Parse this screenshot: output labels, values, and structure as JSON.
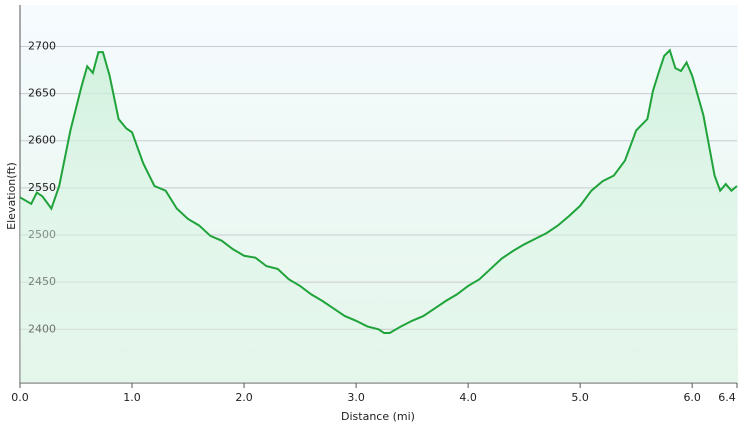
{
  "chart_data": {
    "type": "area",
    "xlabel": "Distance  (mi)",
    "ylabel": "Elevation(ft)",
    "x": [
      0.0,
      0.1,
      0.15,
      0.2,
      0.28,
      0.35,
      0.45,
      0.55,
      0.6,
      0.65,
      0.7,
      0.74,
      0.8,
      0.88,
      0.95,
      1.0,
      1.1,
      1.2,
      1.3,
      1.4,
      1.5,
      1.6,
      1.7,
      1.8,
      1.9,
      2.0,
      2.1,
      2.2,
      2.3,
      2.4,
      2.5,
      2.6,
      2.7,
      2.8,
      2.9,
      3.0,
      3.1,
      3.2,
      3.25,
      3.3,
      3.4,
      3.5,
      3.6,
      3.7,
      3.8,
      3.9,
      4.0,
      4.1,
      4.2,
      4.3,
      4.4,
      4.5,
      4.6,
      4.7,
      4.8,
      4.9,
      5.0,
      5.1,
      5.2,
      5.3,
      5.4,
      5.5,
      5.6,
      5.65,
      5.7,
      5.75,
      5.8,
      5.85,
      5.9,
      5.95,
      6.0,
      6.1,
      6.2,
      6.25,
      6.3,
      6.35,
      6.4
    ],
    "values": [
      2540,
      2533,
      2545,
      2541,
      2528,
      2552,
      2611,
      2658,
      2679,
      2672,
      2694,
      2694,
      2669,
      2623,
      2613,
      2609,
      2576,
      2552,
      2547,
      2528,
      2517,
      2510,
      2499,
      2494,
      2485,
      2478,
      2476,
      2467,
      2464,
      2453,
      2446,
      2437,
      2430,
      2422,
      2414,
      2409,
      2403,
      2400,
      2396,
      2396,
      2403,
      2409,
      2414,
      2422,
      2430,
      2437,
      2446,
      2453,
      2464,
      2475,
      2483,
      2490,
      2496,
      2502,
      2510,
      2520,
      2531,
      2547,
      2557,
      2563,
      2579,
      2611,
      2623,
      2653,
      2672,
      2690,
      2696,
      2677,
      2674,
      2683,
      2669,
      2627,
      2563,
      2547,
      2554,
      2547,
      2552
    ],
    "color": "#1fa33a",
    "xlim": [
      0,
      6.4
    ],
    "xticks": [
      {
        "value": 0,
        "label": "0.0"
      },
      {
        "value": 1,
        "label": "1.0"
      },
      {
        "value": 2,
        "label": "2.0"
      },
      {
        "value": 3,
        "label": "3.0"
      },
      {
        "value": 4,
        "label": "4.0"
      },
      {
        "value": 5,
        "label": "5.0"
      },
      {
        "value": 6,
        "label": "6.0"
      },
      6.4
    ],
    "ylim": [
      2343,
      2744
    ],
    "yticks": [
      2400,
      2450,
      2500,
      2550,
      2600,
      2650,
      2700
    ],
    "grid": true
  }
}
